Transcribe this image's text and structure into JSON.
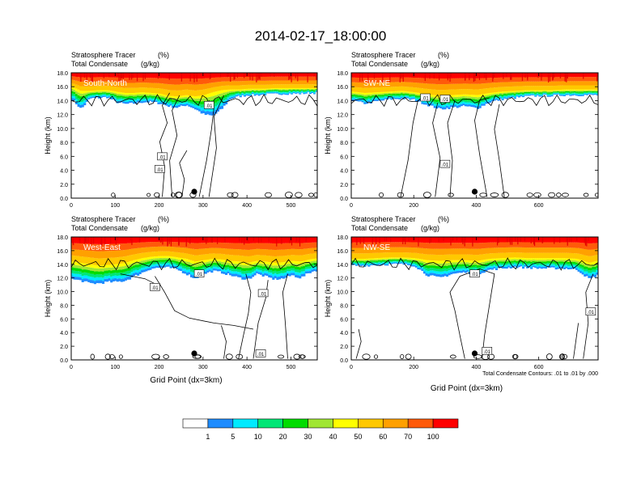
{
  "title": "2014-02-17_18:00:00",
  "colors": {
    "levels": [
      "#ffffff",
      "#1e8cff",
      "#00eaff",
      "#00e676",
      "#00dc00",
      "#a0e632",
      "#ffff00",
      "#ffc800",
      "#ffa000",
      "#ff5a0a",
      "#ff0000"
    ],
    "contour": "#000000"
  },
  "colorbar": {
    "labels": [
      "1",
      "5",
      "10",
      "20",
      "30",
      "40",
      "50",
      "60",
      "70",
      "100"
    ]
  },
  "footnote": "Total Condensate Contours: .01 to .01 by .000",
  "chart_data": [
    {
      "type": "heatmap",
      "panel": "South-North",
      "subtitle_line1": "Stratosphere Tracer",
      "subtitle_unit1": "(%)",
      "subtitle_line2": "Total Condensate",
      "subtitle_unit2": "(g/kg)",
      "ylabel": "Height (km)",
      "xlabel": "",
      "xlim": [
        0,
        560
      ],
      "ylim": [
        0,
        18
      ],
      "xticks": [
        0,
        100,
        200,
        300,
        400,
        500
      ],
      "yticks": [
        "0.0",
        "2.0",
        "4.0",
        "6.0",
        "8.0",
        "10.0",
        "12.0",
        "14.0",
        "16.0",
        "18.0"
      ],
      "marker_x": 280,
      "contour_labels": [
        ".01",
        ".01",
        ".01"
      ],
      "tracer_profile": {
        "x": [
          0,
          20,
          40,
          60,
          80,
          100,
          120,
          140,
          160,
          180,
          200,
          220,
          240,
          260,
          280,
          300,
          320,
          340,
          360,
          380,
          400,
          420,
          440,
          460,
          480,
          500,
          520,
          540,
          560
        ],
        "bottom": [
          14.2,
          12.8,
          14.3,
          14.4,
          14.5,
          13.8,
          13.5,
          13.6,
          13.8,
          13.8,
          13.6,
          13.2,
          13.0,
          13.4,
          12.8,
          12.0,
          11.8,
          12.8,
          14.3,
          14.6,
          14.8,
          14.8,
          14.9,
          14.9,
          15.0,
          15.0,
          15.0,
          15.1,
          15.1
        ],
        "high": [
          16.0,
          15.4,
          15.4,
          15.5,
          15.5,
          15.3,
          15.1,
          15.1,
          15.2,
          15.1,
          15.0,
          14.7,
          14.6,
          14.8,
          14.6,
          14.8,
          15.2,
          15.5,
          15.6,
          15.6,
          15.7,
          15.7,
          15.7,
          15.8,
          15.8,
          15.8,
          15.8,
          15.8,
          15.8
        ]
      }
    },
    {
      "type": "heatmap",
      "panel": "SW-NE",
      "subtitle_line1": "Stratosphere Tracer",
      "subtitle_unit1": "(%)",
      "subtitle_line2": "Total Condensate",
      "subtitle_unit2": "(g/kg)",
      "ylabel": "Height (km)",
      "xlabel": "",
      "xlim": [
        0,
        790
      ],
      "ylim": [
        0,
        18
      ],
      "xticks": [
        0,
        200,
        400,
        600
      ],
      "yticks": [
        "0.0",
        "2.0",
        "4.0",
        "6.0",
        "8.0",
        "10.0",
        "12.0",
        "14.0",
        "16.0",
        "18.0"
      ],
      "marker_x": 395,
      "contour_labels": [
        ".01",
        ".01",
        ".01"
      ],
      "tracer_profile": {
        "x": [
          0,
          40,
          80,
          120,
          160,
          200,
          240,
          280,
          320,
          360,
          400,
          440,
          480,
          520,
          560,
          600,
          640,
          680,
          720,
          760,
          790
        ],
        "bottom": [
          14.0,
          13.6,
          13.9,
          14.2,
          14.3,
          14.1,
          13.4,
          12.8,
          13.0,
          13.2,
          12.9,
          13.8,
          14.2,
          14.4,
          14.6,
          14.7,
          14.7,
          14.8,
          14.8,
          14.8,
          14.8
        ],
        "high": [
          15.3,
          15.1,
          15.2,
          15.3,
          15.4,
          15.2,
          14.9,
          14.7,
          14.8,
          14.9,
          14.8,
          15.1,
          15.3,
          15.4,
          15.5,
          15.5,
          15.5,
          15.6,
          15.6,
          15.6,
          15.6
        ]
      }
    },
    {
      "type": "heatmap",
      "panel": "West-East",
      "subtitle_line1": "Stratosphere Tracer",
      "subtitle_unit1": "(%)",
      "subtitle_line2": "Total Condensate",
      "subtitle_unit2": "(g/kg)",
      "ylabel": "Height (km)",
      "xlabel": "Grid Point (dx=3km)",
      "xlim": [
        0,
        560
      ],
      "ylim": [
        0,
        18
      ],
      "xticks": [
        0,
        100,
        200,
        300,
        400,
        500
      ],
      "yticks": [
        "0.0",
        "2.0",
        "4.0",
        "6.0",
        "8.0",
        "10.0",
        "12.0",
        "14.0",
        "16.0",
        "18.0"
      ],
      "marker_x": 280,
      "contour_labels": [
        ".01",
        ".01",
        ".01",
        ".01"
      ],
      "tracer_profile": {
        "x": [
          0,
          20,
          40,
          60,
          80,
          100,
          120,
          140,
          160,
          180,
          200,
          220,
          240,
          260,
          280,
          300,
          320,
          340,
          360,
          380,
          400,
          420,
          440,
          460,
          480,
          500,
          520,
          540,
          560
        ],
        "bottom": [
          11.8,
          11.6,
          11.2,
          11.2,
          11.4,
          11.4,
          11.6,
          12.2,
          12.8,
          13.4,
          13.5,
          13.5,
          13.2,
          12.6,
          11.9,
          12.6,
          13.0,
          12.8,
          12.4,
          12.0,
          11.8,
          12.6,
          12.2,
          11.8,
          11.9,
          12.4,
          12.0,
          12.8,
          13.2
        ],
        "high": [
          14.4,
          14.2,
          14.0,
          13.8,
          13.9,
          14.0,
          14.2,
          14.6,
          14.9,
          15.1,
          15.2,
          15.2,
          15.0,
          14.8,
          14.4,
          14.6,
          14.8,
          14.7,
          14.5,
          14.4,
          14.2,
          14.5,
          14.4,
          14.2,
          14.3,
          14.5,
          14.4,
          14.7,
          14.9
        ]
      }
    },
    {
      "type": "heatmap",
      "panel": "NW-SE",
      "subtitle_line1": "Stratosphere Tracer",
      "subtitle_unit1": "(%)",
      "subtitle_line2": "Total Condensate",
      "subtitle_unit2": "(g/kg)",
      "ylabel": "Height (km)",
      "xlabel": "Grid Point (dx=3km)",
      "xlim": [
        0,
        790
      ],
      "ylim": [
        0,
        18
      ],
      "xticks": [
        0,
        200,
        400,
        600
      ],
      "yticks": [
        "0.0",
        "2.0",
        "4.0",
        "6.0",
        "8.0",
        "10.0",
        "12.0",
        "14.0",
        "16.0",
        "18.0"
      ],
      "marker_x": 395,
      "contour_labels": [
        ".01",
        ".01",
        ".01"
      ],
      "tracer_profile": {
        "x": [
          0,
          40,
          80,
          120,
          160,
          200,
          240,
          280,
          320,
          360,
          400,
          440,
          480,
          520,
          560,
          600,
          640,
          680,
          720,
          760,
          790
        ],
        "bottom": [
          13.8,
          13.8,
          13.9,
          14.0,
          14.0,
          13.8,
          12.4,
          12.0,
          12.6,
          12.8,
          12.6,
          13.2,
          13.4,
          13.6,
          13.5,
          13.4,
          13.4,
          13.4,
          13.2,
          11.8,
          12.6
        ],
        "high": [
          14.8,
          14.8,
          14.9,
          15.0,
          15.0,
          14.9,
          14.6,
          14.5,
          14.6,
          14.6,
          14.5,
          14.8,
          14.9,
          15.0,
          14.9,
          14.9,
          14.9,
          14.9,
          14.8,
          14.2,
          14.6
        ]
      }
    }
  ]
}
